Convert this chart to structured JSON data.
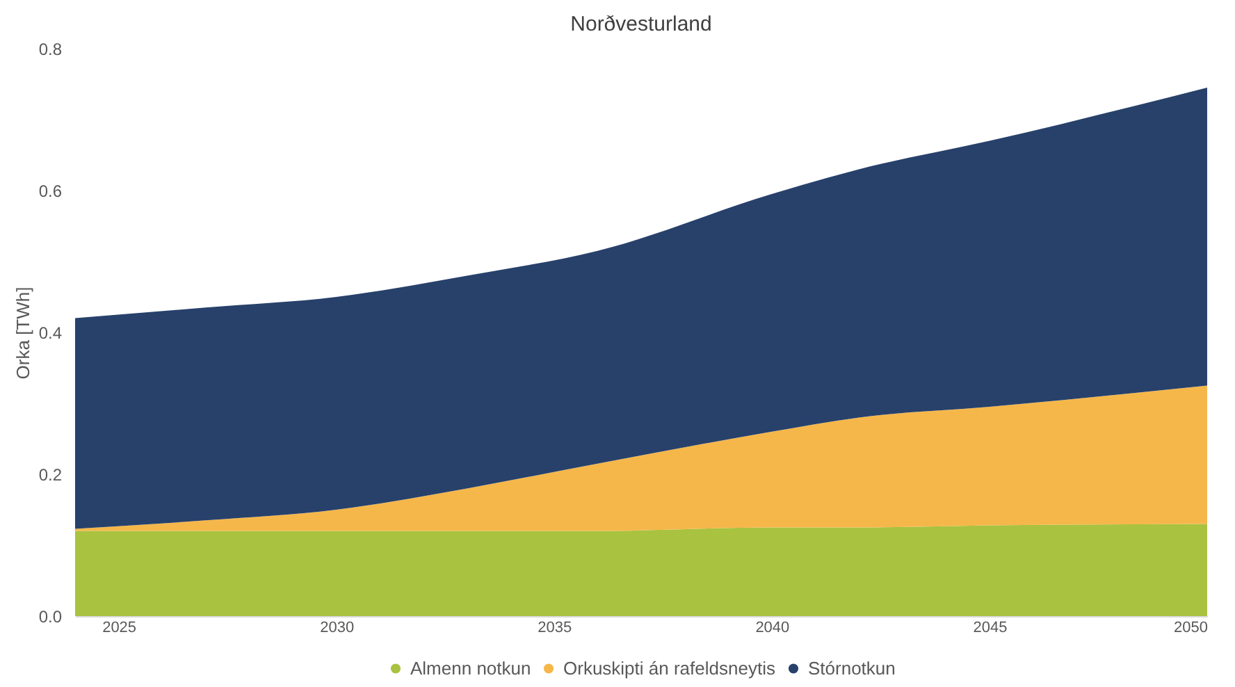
{
  "chart_data": {
    "type": "area",
    "title": "Norðvesturland",
    "ylabel": "Orka [TWh]",
    "stacked": true,
    "x": [
      2024,
      2027,
      2030,
      2033,
      2036,
      2040,
      2042,
      2045,
      2050
    ],
    "series": [
      {
        "name": "Almenn notkun",
        "color": "#a9c23f",
        "values": [
          0.12,
          0.12,
          0.12,
          0.12,
          0.12,
          0.125,
          0.125,
          0.128,
          0.13
        ]
      },
      {
        "name": "Orkuskipti án rafeldsneytis",
        "color": "#f5b74a",
        "values": [
          0.003,
          0.015,
          0.03,
          0.06,
          0.095,
          0.135,
          0.155,
          0.167,
          0.195
        ]
      },
      {
        "name": "Stórnotkun",
        "color": "#27416b",
        "values": [
          0.297,
          0.3,
          0.3,
          0.3,
          0.3,
          0.335,
          0.35,
          0.375,
          0.42
        ]
      }
    ],
    "xlim": [
      2024,
      2050
    ],
    "xticks": [
      2025,
      2030,
      2035,
      2040,
      2045,
      2050
    ],
    "ylim": [
      0,
      0.8
    ],
    "yticks": [
      {
        "value": 0,
        "label": "0.0"
      },
      {
        "value": 0.2,
        "label": "0.2"
      },
      {
        "value": 0.4,
        "label": "0.4"
      },
      {
        "value": 0.6,
        "label": "0.6"
      },
      {
        "value": 0.8,
        "label": "0.8"
      }
    ],
    "grid": false,
    "legend": "bottom"
  }
}
